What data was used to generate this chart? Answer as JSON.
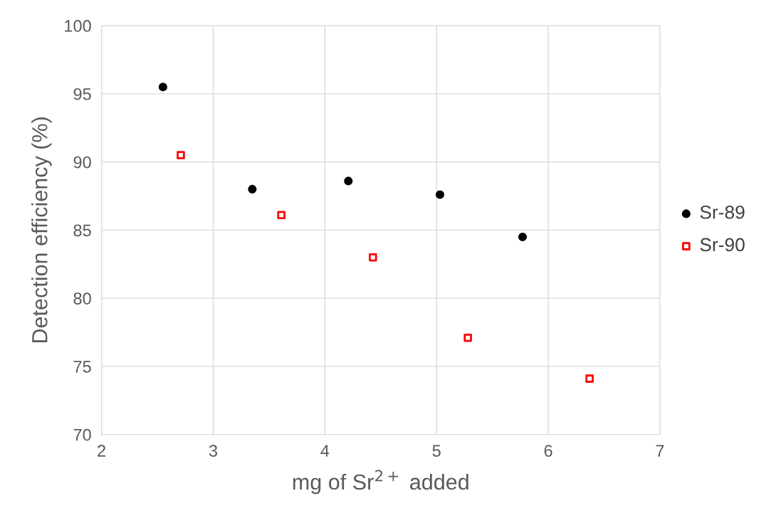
{
  "chart_data": {
    "type": "scatter",
    "xlabel": "mg of Sr$^{2+}$ added",
    "ylabel": "Detection efficiency (%)",
    "xlim": [
      2,
      7
    ],
    "xticks": [
      2,
      3,
      4,
      5,
      6,
      7
    ],
    "ylim": [
      70,
      100
    ],
    "yticks": [
      70,
      75,
      80,
      85,
      90,
      95,
      100
    ],
    "grid": true,
    "legend": "right",
    "series": [
      {
        "name": "Sr-89",
        "color": "#000000",
        "marker": "circle",
        "x": [
          2.55,
          3.35,
          4.21,
          5.03,
          5.77
        ],
        "values": [
          95.5,
          88.0,
          88.6,
          87.6,
          84.5
        ]
      },
      {
        "name": "Sr-90",
        "color": "#ff0000",
        "marker": "square",
        "x": [
          2.71,
          3.61,
          4.43,
          5.28,
          6.37
        ],
        "values": [
          90.5,
          86.1,
          83.0,
          77.1,
          74.1
        ]
      }
    ]
  }
}
